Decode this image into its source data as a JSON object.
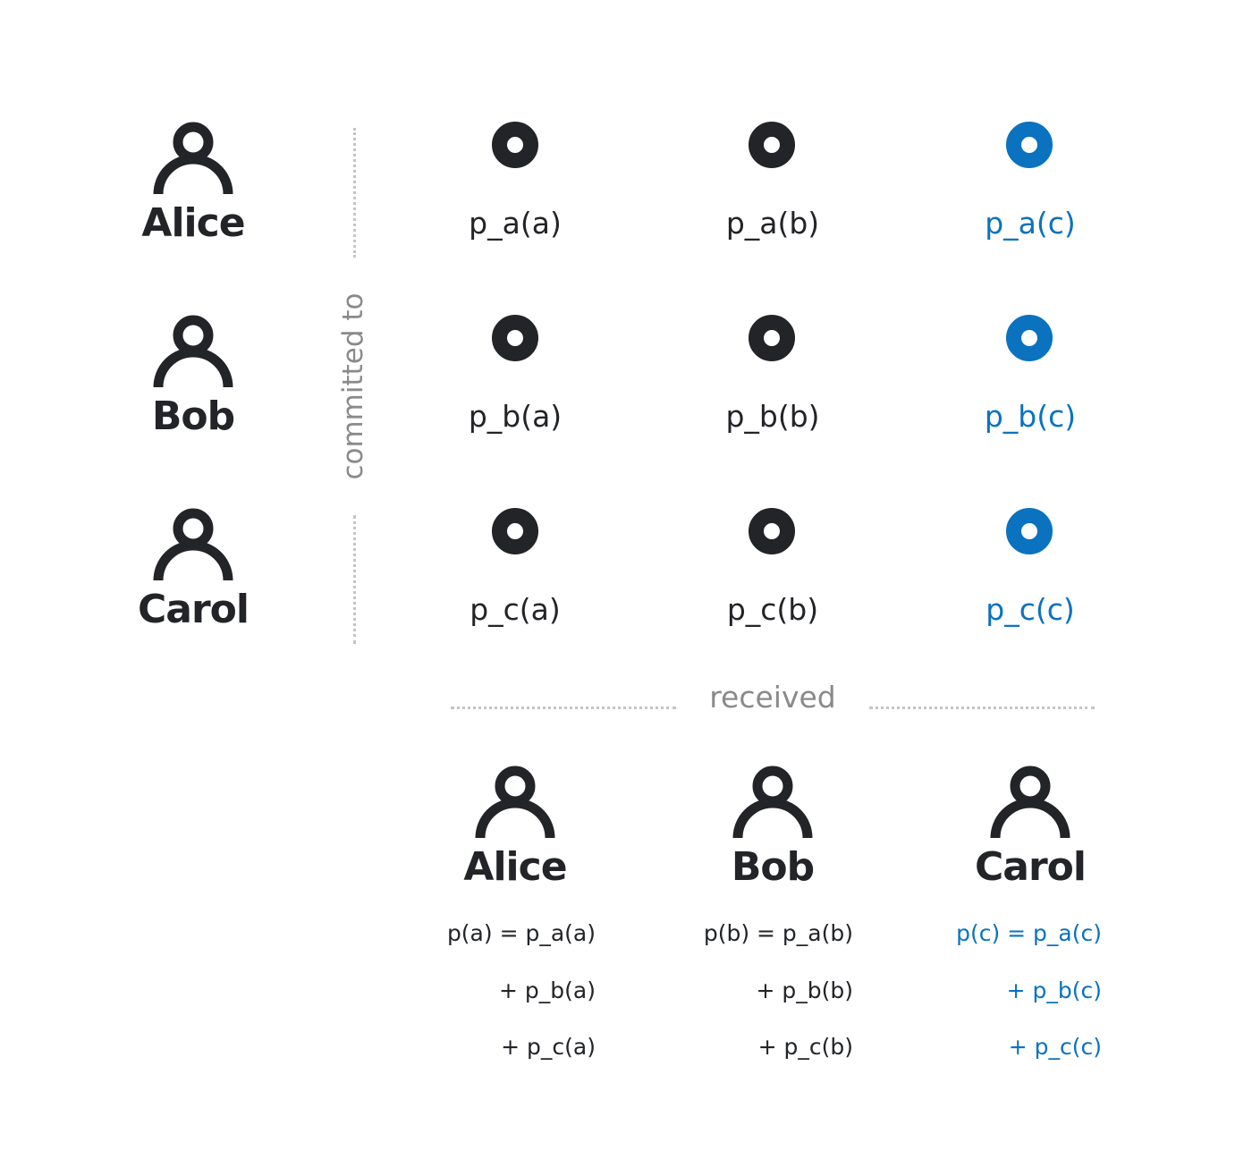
{
  "colors": {
    "dark": "#222428",
    "blue": "#0a72bf",
    "muted": "#8a8a8a",
    "dots": "#c4c4c4"
  },
  "icons": {
    "person": "person-icon",
    "point": "point-ring-icon"
  },
  "rows": [
    {
      "name": "Alice",
      "labels": [
        "p_a(a)",
        "p_a(b)",
        "p_a(c)"
      ]
    },
    {
      "name": "Bob",
      "labels": [
        "p_b(a)",
        "p_b(b)",
        "p_b(c)"
      ]
    },
    {
      "name": "Carol",
      "labels": [
        "p_c(a)",
        "p_c(b)",
        "p_c(c)"
      ]
    }
  ],
  "side_label": "committed to",
  "mid_label": "received",
  "receivers": [
    {
      "name": "Alice",
      "lines": [
        "p(a) = p_a(a)",
        "+ p_b(a)",
        "+ p_c(a)"
      ]
    },
    {
      "name": "Bob",
      "lines": [
        "p(b) = p_a(b)",
        "+ p_b(b)",
        "+ p_c(b)"
      ]
    },
    {
      "name": "Carol",
      "lines": [
        "p(c) = p_a(c)",
        "+ p_b(c)",
        "+ p_c(c)"
      ]
    }
  ]
}
